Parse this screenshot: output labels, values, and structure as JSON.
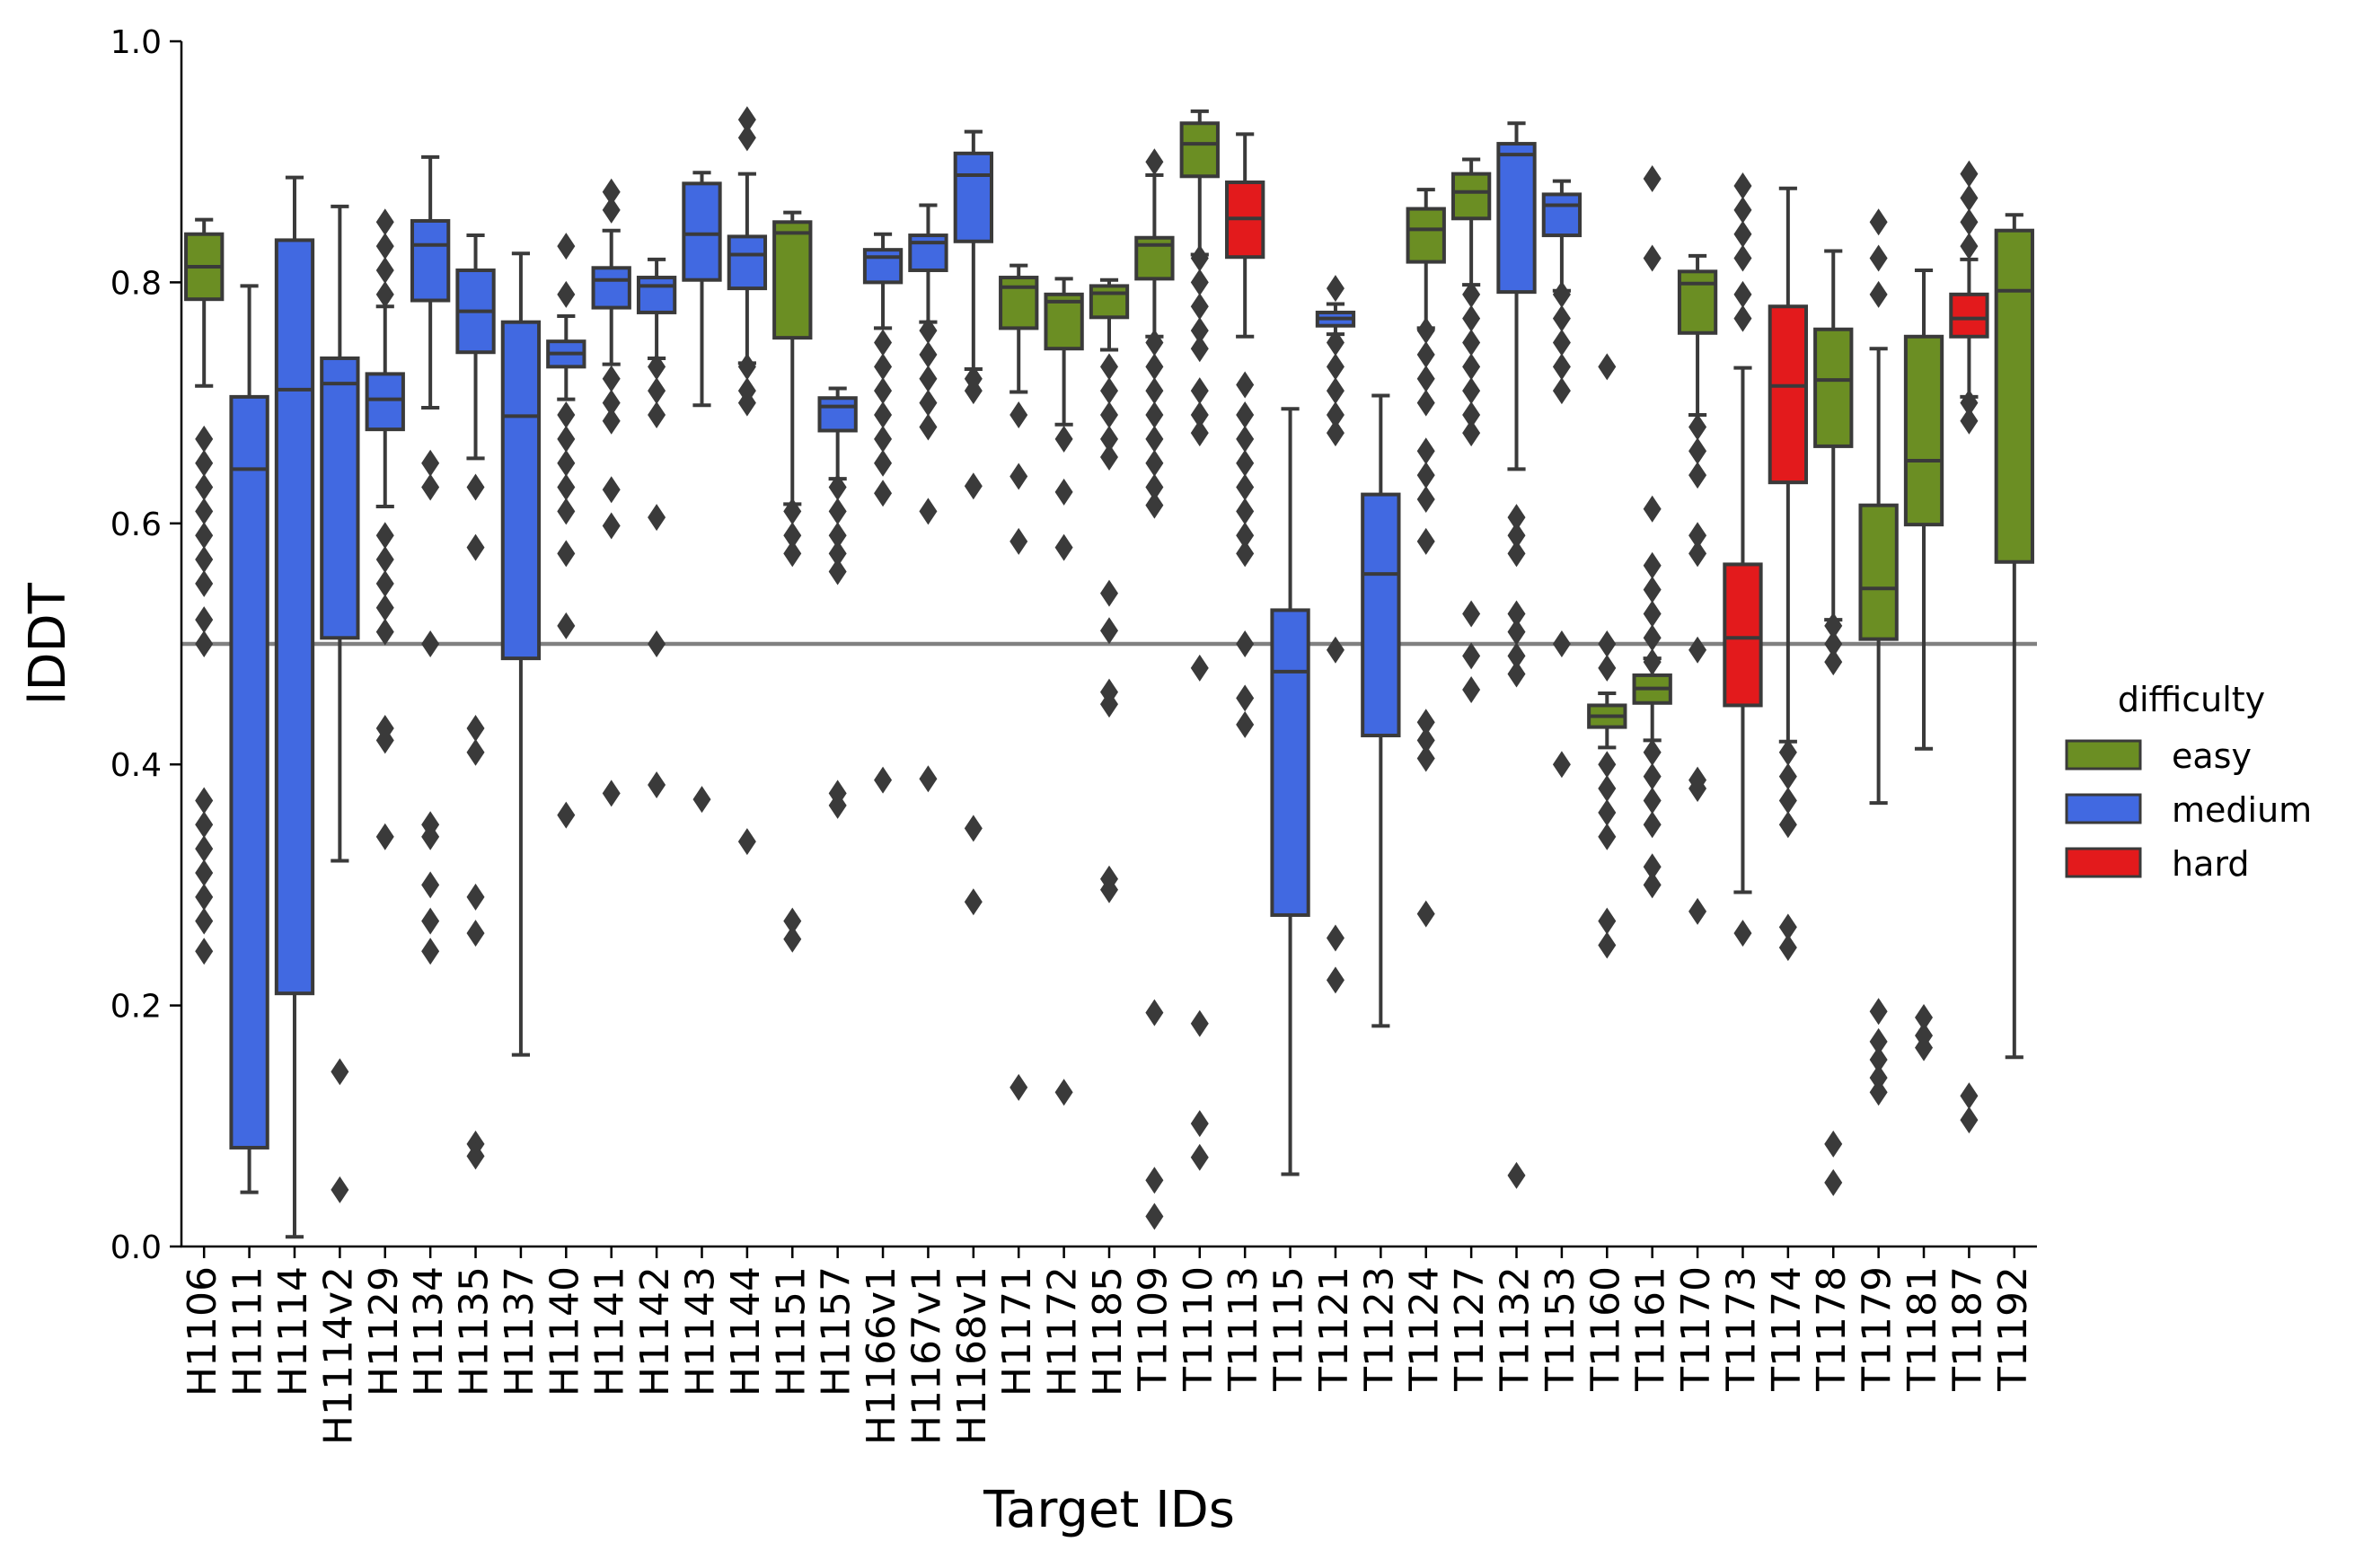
{
  "chart_data": {
    "type": "box",
    "xlabel": "Target IDs",
    "ylabel": "lDDT",
    "ylim": [
      0.0,
      1.0
    ],
    "yticks": [
      "0.0",
      "0.2",
      "0.4",
      "0.6",
      "0.8",
      "1.0"
    ],
    "reference_line": 0.5,
    "grid": false,
    "legend": {
      "title": "difficulty",
      "placement": "right",
      "entries": [
        {
          "label": "easy",
          "color": "#6b8e23"
        },
        {
          "label": "medium",
          "color": "#4169e1"
        },
        {
          "label": "hard",
          "color": "#e31a1c"
        }
      ]
    },
    "targets": [
      {
        "id": "H1106",
        "difficulty": "easy",
        "q1": 0.786,
        "median": 0.813,
        "q3": 0.84,
        "lo": 0.714,
        "hi": 0.852,
        "outliers": [
          0.67,
          0.65,
          0.63,
          0.61,
          0.59,
          0.57,
          0.55,
          0.52,
          0.5,
          0.37,
          0.35,
          0.33,
          0.31,
          0.29,
          0.27,
          0.245
        ]
      },
      {
        "id": "H1111",
        "difficulty": "medium",
        "q1": 0.082,
        "median": 0.645,
        "q3": 0.705,
        "lo": 0.045,
        "hi": 0.797,
        "outliers": []
      },
      {
        "id": "H1114",
        "difficulty": "medium",
        "q1": 0.21,
        "median": 0.711,
        "q3": 0.835,
        "lo": 0.008,
        "hi": 0.887,
        "outliers": []
      },
      {
        "id": "H1114v2",
        "difficulty": "medium",
        "q1": 0.505,
        "median": 0.716,
        "q3": 0.737,
        "lo": 0.32,
        "hi": 0.863,
        "outliers": [
          0.145,
          0.047
        ]
      },
      {
        "id": "H1129",
        "difficulty": "medium",
        "q1": 0.678,
        "median": 0.703,
        "q3": 0.724,
        "lo": 0.614,
        "hi": 0.78,
        "outliers": [
          0.85,
          0.83,
          0.81,
          0.79,
          0.59,
          0.57,
          0.55,
          0.53,
          0.51,
          0.43,
          0.42,
          0.34
        ]
      },
      {
        "id": "H1134",
        "difficulty": "medium",
        "q1": 0.785,
        "median": 0.831,
        "q3": 0.851,
        "lo": 0.696,
        "hi": 0.904,
        "outliers": [
          0.65,
          0.63,
          0.5,
          0.35,
          0.34,
          0.3,
          0.27,
          0.245
        ]
      },
      {
        "id": "H1135",
        "difficulty": "medium",
        "q1": 0.742,
        "median": 0.776,
        "q3": 0.81,
        "lo": 0.654,
        "hi": 0.839,
        "outliers": [
          0.63,
          0.58,
          0.43,
          0.41,
          0.29,
          0.26,
          0.085,
          0.075
        ]
      },
      {
        "id": "H1137",
        "difficulty": "medium",
        "q1": 0.488,
        "median": 0.689,
        "q3": 0.767,
        "lo": 0.159,
        "hi": 0.824,
        "outliers": []
      },
      {
        "id": "H1140",
        "difficulty": "medium",
        "q1": 0.73,
        "median": 0.741,
        "q3": 0.751,
        "lo": 0.703,
        "hi": 0.772,
        "outliers": [
          0.83,
          0.79,
          0.69,
          0.67,
          0.65,
          0.63,
          0.61,
          0.575,
          0.515,
          0.358
        ]
      },
      {
        "id": "H1141",
        "difficulty": "medium",
        "q1": 0.779,
        "median": 0.802,
        "q3": 0.812,
        "lo": 0.732,
        "hi": 0.843,
        "outliers": [
          0.875,
          0.86,
          0.72,
          0.7,
          0.685,
          0.628,
          0.598,
          0.376
        ]
      },
      {
        "id": "H1142",
        "difficulty": "medium",
        "q1": 0.775,
        "median": 0.797,
        "q3": 0.804,
        "lo": 0.737,
        "hi": 0.819,
        "outliers": [
          0.73,
          0.71,
          0.69,
          0.605,
          0.5,
          0.383
        ]
      },
      {
        "id": "H1143",
        "difficulty": "medium",
        "q1": 0.802,
        "median": 0.84,
        "q3": 0.882,
        "lo": 0.698,
        "hi": 0.891,
        "outliers": [
          0.371
        ]
      },
      {
        "id": "H1144",
        "difficulty": "medium",
        "q1": 0.795,
        "median": 0.823,
        "q3": 0.838,
        "lo": 0.733,
        "hi": 0.89,
        "outliers": [
          0.935,
          0.92,
          0.73,
          0.71,
          0.7,
          0.336
        ]
      },
      {
        "id": "H1151",
        "difficulty": "easy",
        "q1": 0.754,
        "median": 0.841,
        "q3": 0.85,
        "lo": 0.616,
        "hi": 0.858,
        "outliers": [
          0.61,
          0.59,
          0.575,
          0.27,
          0.255
        ]
      },
      {
        "id": "H1157",
        "difficulty": "medium",
        "q1": 0.677,
        "median": 0.697,
        "q3": 0.704,
        "lo": 0.637,
        "hi": 0.712,
        "outliers": [
          0.63,
          0.61,
          0.59,
          0.575,
          0.56,
          0.376,
          0.366
        ]
      },
      {
        "id": "H1166v1",
        "difficulty": "medium",
        "q1": 0.8,
        "median": 0.821,
        "q3": 0.827,
        "lo": 0.762,
        "hi": 0.84,
        "outliers": [
          0.75,
          0.73,
          0.71,
          0.69,
          0.67,
          0.65,
          0.625,
          0.387
        ]
      },
      {
        "id": "H1167v1",
        "difficulty": "medium",
        "q1": 0.81,
        "median": 0.833,
        "q3": 0.839,
        "lo": 0.767,
        "hi": 0.864,
        "outliers": [
          0.76,
          0.74,
          0.72,
          0.7,
          0.68,
          0.61,
          0.388
        ]
      },
      {
        "id": "H1168v1",
        "difficulty": "medium",
        "q1": 0.834,
        "median": 0.889,
        "q3": 0.907,
        "lo": 0.728,
        "hi": 0.925,
        "outliers": [
          0.72,
          0.71,
          0.631,
          0.347,
          0.286
        ]
      },
      {
        "id": "H1171",
        "difficulty": "easy",
        "q1": 0.762,
        "median": 0.796,
        "q3": 0.804,
        "lo": 0.709,
        "hi": 0.814,
        "outliers": [
          0.69,
          0.639,
          0.585,
          0.132
        ]
      },
      {
        "id": "H1172",
        "difficulty": "easy",
        "q1": 0.745,
        "median": 0.784,
        "q3": 0.79,
        "lo": 0.682,
        "hi": 0.803,
        "outliers": [
          0.67,
          0.626,
          0.58,
          0.128
        ]
      },
      {
        "id": "H1185",
        "difficulty": "easy",
        "q1": 0.771,
        "median": 0.791,
        "q3": 0.797,
        "lo": 0.744,
        "hi": 0.802,
        "outliers": [
          0.73,
          0.71,
          0.69,
          0.67,
          0.655,
          0.542,
          0.511,
          0.46,
          0.45,
          0.305,
          0.296
        ]
      },
      {
        "id": "T1109",
        "difficulty": "easy",
        "q1": 0.803,
        "median": 0.831,
        "q3": 0.837,
        "lo": 0.755,
        "hi": 0.889,
        "outliers": [
          0.9,
          0.75,
          0.73,
          0.71,
          0.69,
          0.67,
          0.65,
          0.63,
          0.615,
          0.194,
          0.055,
          0.025
        ]
      },
      {
        "id": "T1110",
        "difficulty": "easy",
        "q1": 0.888,
        "median": 0.915,
        "q3": 0.932,
        "lo": 0.823,
        "hi": 0.942,
        "outliers": [
          0.82,
          0.8,
          0.78,
          0.76,
          0.745,
          0.71,
          0.69,
          0.675,
          0.48,
          0.185,
          0.102,
          0.074
        ]
      },
      {
        "id": "T1113",
        "difficulty": "hard",
        "q1": 0.821,
        "median": 0.853,
        "q3": 0.883,
        "lo": 0.755,
        "hi": 0.923,
        "outliers": [
          0.715,
          0.69,
          0.67,
          0.65,
          0.63,
          0.61,
          0.59,
          0.575,
          0.5,
          0.455,
          0.433
        ]
      },
      {
        "id": "T1115",
        "difficulty": "medium",
        "q1": 0.275,
        "median": 0.477,
        "q3": 0.528,
        "lo": 0.06,
        "hi": 0.695,
        "outliers": []
      },
      {
        "id": "T1121",
        "difficulty": "medium",
        "q1": 0.764,
        "median": 0.77,
        "q3": 0.775,
        "lo": 0.757,
        "hi": 0.782,
        "outliers": [
          0.795,
          0.75,
          0.73,
          0.71,
          0.69,
          0.675,
          0.495,
          0.256,
          0.221
        ]
      },
      {
        "id": "T1123",
        "difficulty": "medium",
        "q1": 0.424,
        "median": 0.558,
        "q3": 0.624,
        "lo": 0.183,
        "hi": 0.706,
        "outliers": []
      },
      {
        "id": "T1124",
        "difficulty": "easy",
        "q1": 0.817,
        "median": 0.844,
        "q3": 0.861,
        "lo": 0.762,
        "hi": 0.877,
        "outliers": [
          0.76,
          0.74,
          0.72,
          0.7,
          0.66,
          0.64,
          0.62,
          0.585,
          0.435,
          0.42,
          0.405,
          0.276
        ]
      },
      {
        "id": "T1127",
        "difficulty": "easy",
        "q1": 0.853,
        "median": 0.875,
        "q3": 0.89,
        "lo": 0.798,
        "hi": 0.902,
        "outliers": [
          0.79,
          0.77,
          0.75,
          0.73,
          0.71,
          0.69,
          0.675,
          0.525,
          0.49,
          0.462
        ]
      },
      {
        "id": "T1132",
        "difficulty": "medium",
        "q1": 0.792,
        "median": 0.906,
        "q3": 0.915,
        "lo": 0.645,
        "hi": 0.932,
        "outliers": [
          0.605,
          0.59,
          0.575,
          0.525,
          0.51,
          0.49,
          0.475,
          0.059
        ]
      },
      {
        "id": "T1153",
        "difficulty": "medium",
        "q1": 0.839,
        "median": 0.864,
        "q3": 0.873,
        "lo": 0.793,
        "hi": 0.884,
        "outliers": [
          0.79,
          0.77,
          0.75,
          0.73,
          0.71,
          0.5,
          0.4
        ]
      },
      {
        "id": "T1160",
        "difficulty": "easy",
        "q1": 0.431,
        "median": 0.44,
        "q3": 0.449,
        "lo": 0.414,
        "hi": 0.459,
        "outliers": [
          0.73,
          0.5,
          0.48,
          0.4,
          0.38,
          0.36,
          0.34,
          0.27,
          0.25
        ]
      },
      {
        "id": "T1161",
        "difficulty": "easy",
        "q1": 0.451,
        "median": 0.463,
        "q3": 0.474,
        "lo": 0.42,
        "hi": 0.488,
        "outliers": [
          0.886,
          0.82,
          0.612,
          0.565,
          0.545,
          0.525,
          0.505,
          0.485,
          0.41,
          0.39,
          0.37,
          0.35,
          0.315,
          0.3
        ]
      },
      {
        "id": "T1170",
        "difficulty": "easy",
        "q1": 0.758,
        "median": 0.799,
        "q3": 0.809,
        "lo": 0.69,
        "hi": 0.822,
        "outliers": [
          0.68,
          0.66,
          0.64,
          0.59,
          0.575,
          0.495,
          0.387,
          0.38,
          0.278
        ]
      },
      {
        "id": "T1173",
        "difficulty": "hard",
        "q1": 0.449,
        "median": 0.505,
        "q3": 0.566,
        "lo": 0.294,
        "hi": 0.729,
        "outliers": [
          0.88,
          0.86,
          0.84,
          0.82,
          0.79,
          0.77,
          0.26
        ]
      },
      {
        "id": "T1174",
        "difficulty": "hard",
        "q1": 0.634,
        "median": 0.714,
        "q3": 0.78,
        "lo": 0.419,
        "hi": 0.878,
        "outliers": [
          0.41,
          0.39,
          0.37,
          0.35,
          0.265,
          0.248
        ]
      },
      {
        "id": "T1178",
        "difficulty": "easy",
        "q1": 0.664,
        "median": 0.719,
        "q3": 0.761,
        "lo": 0.52,
        "hi": 0.826,
        "outliers": [
          0.515,
          0.5,
          0.485,
          0.085,
          0.053
        ]
      },
      {
        "id": "T1179",
        "difficulty": "easy",
        "q1": 0.504,
        "median": 0.546,
        "q3": 0.615,
        "lo": 0.368,
        "hi": 0.745,
        "outliers": [
          0.85,
          0.82,
          0.79,
          0.195,
          0.17,
          0.155,
          0.14,
          0.128
        ]
      },
      {
        "id": "T1181",
        "difficulty": "easy",
        "q1": 0.599,
        "median": 0.652,
        "q3": 0.755,
        "lo": 0.413,
        "hi": 0.81,
        "outliers": [
          0.19,
          0.175,
          0.165
        ]
      },
      {
        "id": "T1187",
        "difficulty": "hard",
        "q1": 0.755,
        "median": 0.77,
        "q3": 0.79,
        "lo": 0.705,
        "hi": 0.819,
        "outliers": [
          0.89,
          0.87,
          0.85,
          0.83,
          0.7,
          0.685,
          0.125,
          0.105
        ]
      },
      {
        "id": "T1192",
        "difficulty": "easy",
        "q1": 0.568,
        "median": 0.793,
        "q3": 0.843,
        "lo": 0.157,
        "hi": 0.856,
        "outliers": []
      }
    ]
  }
}
